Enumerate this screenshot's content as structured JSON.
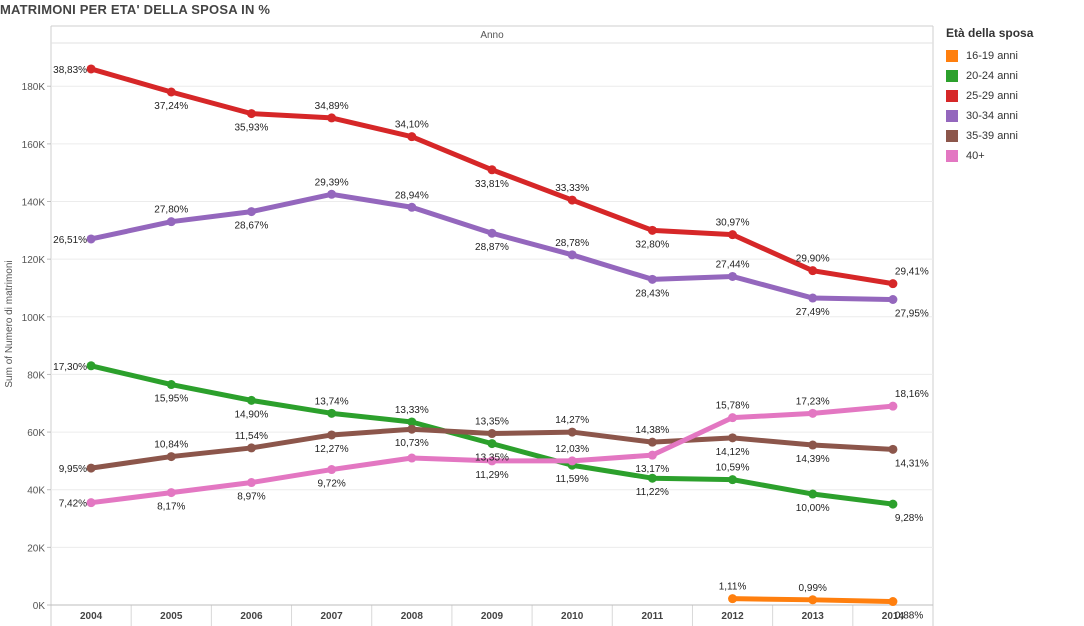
{
  "title": "MATRIMONI PER ETA' DELLA SPOSA IN %",
  "legend": {
    "title": "Età  della sposa",
    "items": [
      {
        "label": "16-19 anni",
        "color": "#ff7f0e"
      },
      {
        "label": "20-24 anni",
        "color": "#2ca02c"
      },
      {
        "label": "25-29 anni",
        "color": "#d62728"
      },
      {
        "label": "30-34 anni",
        "color": "#9467bd"
      },
      {
        "label": "35-39 anni",
        "color": "#8c564b"
      },
      {
        "label": "40+",
        "color": "#e377c2"
      }
    ]
  },
  "chart_data": {
    "type": "line",
    "column_header": "Anno",
    "ylabel": "Sum of Numero di matrimoni",
    "ylim": [
      0,
      195000
    ],
    "yticks": [
      0,
      20000,
      40000,
      60000,
      80000,
      100000,
      120000,
      140000,
      160000,
      180000
    ],
    "ytick_labels": [
      "0K",
      "20K",
      "40K",
      "60K",
      "80K",
      "100K",
      "120K",
      "140K",
      "160K",
      "180K"
    ],
    "categories": [
      "2004",
      "2005",
      "2006",
      "2007",
      "2008",
      "2009",
      "2010",
      "2011",
      "2012",
      "2013",
      "2014"
    ],
    "grid": true,
    "legend_position": "right",
    "series": [
      {
        "name": "16-19 anni",
        "color": "#ff7f0e",
        "values": [
          null,
          null,
          null,
          null,
          null,
          null,
          null,
          null,
          2200,
          1800,
          1200
        ],
        "labels": [
          null,
          null,
          null,
          null,
          null,
          null,
          null,
          null,
          "1,11%",
          "0,99%",
          "0,88%"
        ]
      },
      {
        "name": "20-24 anni",
        "color": "#2ca02c",
        "values": [
          83000,
          76500,
          71000,
          66500,
          63500,
          56000,
          48500,
          44000,
          43500,
          38500,
          35000
        ],
        "labels": [
          "17,30%",
          "15,95%",
          "14,90%",
          "13,74%",
          "13,33%",
          "13,35%",
          "11,59%",
          "11,22%",
          "10,59%",
          "10,00%",
          "9,28%"
        ]
      },
      {
        "name": "25-29 anni",
        "color": "#d62728",
        "values": [
          186000,
          178000,
          170500,
          169000,
          162500,
          151000,
          140500,
          130000,
          128500,
          116000,
          111500
        ],
        "labels": [
          "38,83%",
          "37,24%",
          "35,93%",
          "34,89%",
          "34,10%",
          "33,81%",
          "33,33%",
          "32,80%",
          "30,97%",
          "29,90%",
          "29,41%"
        ]
      },
      {
        "name": "30-34 anni",
        "color": "#9467bd",
        "values": [
          127000,
          133000,
          136500,
          142500,
          138000,
          129000,
          121500,
          113000,
          114000,
          106500,
          106000
        ],
        "labels": [
          "26,51%",
          "27,80%",
          "28,67%",
          "29,39%",
          "28,94%",
          "28,87%",
          "28,78%",
          "28,43%",
          "27,44%",
          "27,49%",
          "27,95%"
        ]
      },
      {
        "name": "35-39 anni",
        "color": "#8c564b",
        "values": [
          47500,
          51500,
          54500,
          59000,
          61000,
          59500,
          60000,
          56500,
          58000,
          55500,
          54000
        ],
        "labels": [
          "9,95%",
          "10,84%",
          "11,54%",
          "12,27%",
          "10,73%",
          "13,35%",
          "14,27%",
          "14,38%",
          "14,12%",
          "14,39%",
          "14,31%"
        ]
      },
      {
        "name": "40+",
        "color": "#e377c2",
        "values": [
          35500,
          39000,
          42500,
          47000,
          51000,
          50000,
          50000,
          52000,
          65000,
          66500,
          69000
        ],
        "labels": [
          "7,42%",
          "8,17%",
          "8,97%",
          "9,72%",
          null,
          "11,29%",
          "12,03%",
          "13,17%",
          "15,78%",
          "17,23%",
          "18,16%"
        ]
      }
    ]
  }
}
